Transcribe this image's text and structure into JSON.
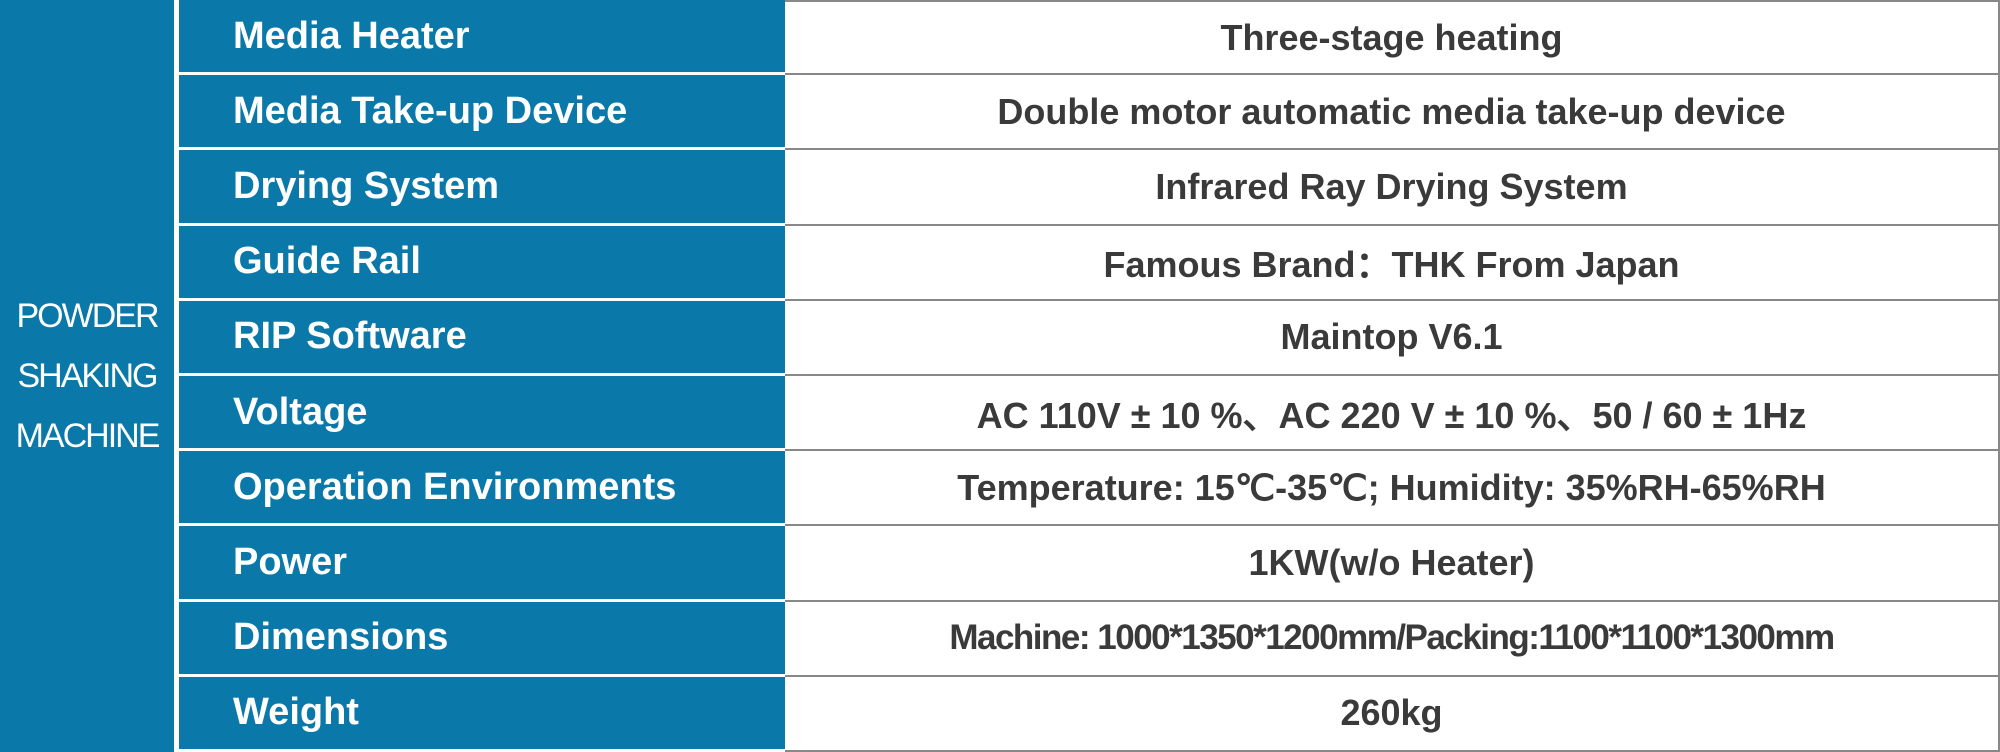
{
  "section": "POWDER SHAKING MACHINE",
  "table": {
    "rows": [
      [
        "Media Heater",
        "Three-stage heating"
      ],
      [
        "Media Take-up Device",
        "Double motor automatic media take-up device"
      ],
      [
        "Drying System",
        "Infrared Ray Drying System"
      ],
      [
        "Guide Rail",
        "Famous Brand：THK From Japan"
      ],
      [
        "RIP Software",
        "Maintop V6.1"
      ],
      [
        "Voltage",
        "AC 110V ± 10 %、AC 220 V ± 10 %、50 / 60 ± 1Hz"
      ],
      [
        "Operation Environments",
        "Temperature: 15℃-35℃; Humidity: 35%RH-65%RH"
      ],
      [
        "Power",
        "1KW(w/o Heater)"
      ],
      [
        "Dimensions",
        "Machine: 1000*1350*1200mm/Packing:1100*1100*1300mm"
      ],
      [
        "Weight",
        "260kg"
      ]
    ]
  }
}
